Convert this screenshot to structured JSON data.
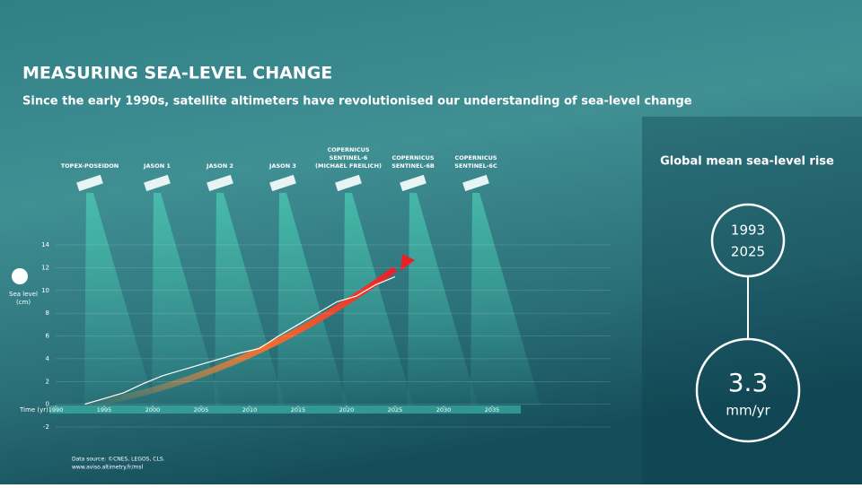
{
  "chart_data": {
    "type": "line",
    "title": "MEASURING SEA-LEVEL CHANGE",
    "subtitle": "Since the early 1990s, satellite altimeters have revolutionised our understanding of sea-level change",
    "ylabel": [
      "Sea level",
      "(cm)"
    ],
    "xlabel": "Time (yr)",
    "x": [
      1993,
      1995,
      1997,
      1999,
      2001,
      2003,
      2005,
      2007,
      2009,
      2011,
      2013,
      2015,
      2017,
      2019,
      2021,
      2023,
      2025
    ],
    "series": [
      {
        "color": "#ffffff",
        "values": [
          0,
          0.5,
          1.0,
          1.8,
          2.5,
          3.0,
          3.5,
          4.0,
          4.5,
          4.9,
          6.0,
          7.0,
          8.0,
          9.0,
          9.5,
          10.5,
          11.2
        ]
      }
    ],
    "xlim": [
      1990,
      2035
    ],
    "xticks": [
      1990,
      1995,
      2000,
      2005,
      2010,
      2015,
      2020,
      2025,
      2030,
      2035
    ],
    "ylim": [
      -2,
      14
    ],
    "yticks": [
      -2,
      0,
      2,
      4,
      6,
      8,
      10,
      12,
      14
    ],
    "grid": true
  },
  "satellites": [
    [
      "TOPEX-POSEIDON"
    ],
    [
      "JASON 1"
    ],
    [
      "JASON 2"
    ],
    [
      "JASON 3"
    ],
    [
      "COPERNICUS",
      "SENTINEL-6",
      "(MICHAEL FREILICH)"
    ],
    [
      "COPERNICUS",
      "SENTINEL-6B"
    ],
    [
      "COPERNICUS",
      "SENTINEL-6C"
    ]
  ],
  "panel": {
    "title": "Global mean sea-level rise",
    "years": [
      "1993",
      "2025"
    ],
    "rate": "3.3",
    "unit": "mm/yr"
  },
  "source": [
    "Data source: ©CNES, LEGOS, CLS.",
    "www.aviso.altimetry.fr/msl"
  ]
}
